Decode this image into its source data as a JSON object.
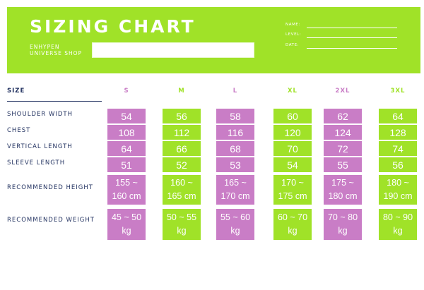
{
  "header": {
    "title": "SIZING CHART",
    "shop_name": "ENHYPEN UNIVERSE SHOP",
    "meta_labels": {
      "name": "NAME:",
      "level": "LEVEL:",
      "date": "DATE:"
    }
  },
  "colors": {
    "pink": "#c97dc6",
    "green": "#a0e228",
    "navy": "#1f2f5e"
  },
  "table": {
    "size_label": "SIZE",
    "sizes": [
      "S",
      "M",
      "L",
      "XL",
      "2XL",
      "3XL"
    ],
    "rows": [
      {
        "label": "SHOULDER WIDTH",
        "values": [
          "54",
          "56",
          "58",
          "60",
          "62",
          "64"
        ]
      },
      {
        "label": "CHEST",
        "values": [
          "108",
          "112",
          "116",
          "120",
          "124",
          "128"
        ]
      },
      {
        "label": "VERTICAL LENGTH",
        "values": [
          "64",
          "66",
          "68",
          "70",
          "72",
          "74"
        ]
      },
      {
        "label": "SLEEVE LENGTH",
        "values": [
          "51",
          "52",
          "53",
          "54",
          "55",
          "56"
        ]
      },
      {
        "label": "RECOMMENDED HEIGHT",
        "values": [
          "155 ~\n160 cm",
          "160 ~\n165 cm",
          "165 ~\n170 cm",
          "170 ~\n175 cm",
          "175 ~\n180 cm",
          "180 ~\n190 cm"
        ]
      },
      {
        "label": "RECOMMENDED WEIGHT",
        "values": [
          "45 ~ 50\nkg",
          "50 ~ 55\nkg",
          "55 ~ 60\nkg",
          "60 ~ 70\nkg",
          "70 ~ 80\nkg",
          "80 ~ 90\nkg"
        ]
      }
    ]
  }
}
